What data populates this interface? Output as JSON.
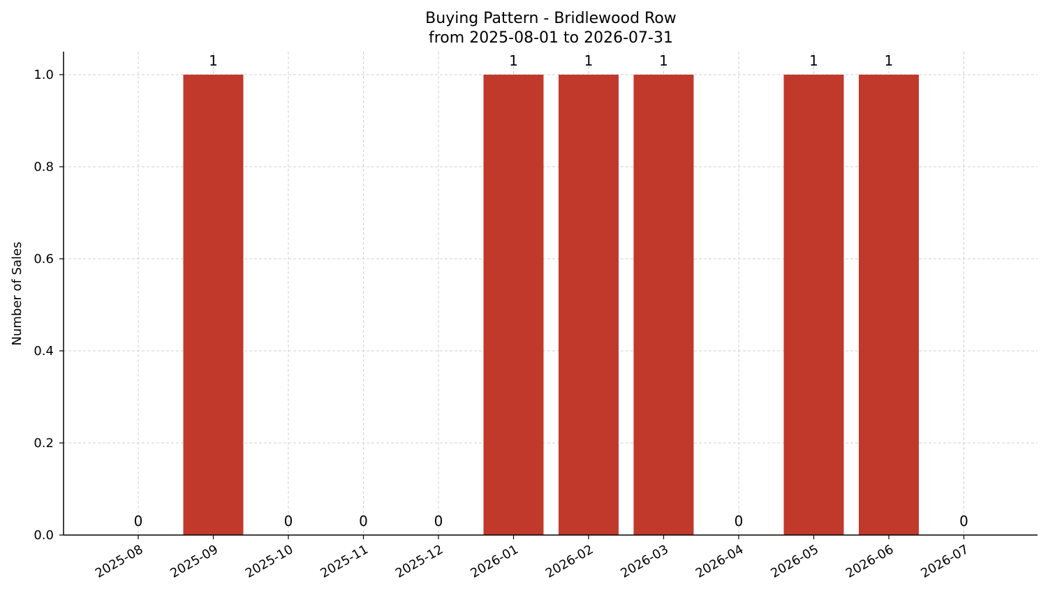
{
  "chart_data": {
    "type": "bar",
    "title": "Buying Pattern - Bridlewood Row",
    "subtitle": "from 2025-08-01 to 2026-07-31",
    "xlabel": "",
    "ylabel": "Number of Sales",
    "categories": [
      "2025-08",
      "2025-09",
      "2025-10",
      "2025-11",
      "2025-12",
      "2026-01",
      "2026-02",
      "2026-03",
      "2026-04",
      "2026-05",
      "2026-06",
      "2026-07"
    ],
    "values": [
      0,
      1,
      0,
      0,
      0,
      1,
      1,
      1,
      0,
      1,
      1,
      0
    ],
    "data_labels": [
      "0",
      "1",
      "0",
      "0",
      "0",
      "1",
      "1",
      "1",
      "0",
      "1",
      "1",
      "0"
    ],
    "ylim": [
      0,
      1.05
    ],
    "yticks": [
      0.0,
      0.2,
      0.4,
      0.6,
      0.8,
      1.0
    ],
    "ytick_labels": [
      "0.0",
      "0.2",
      "0.4",
      "0.6",
      "0.8",
      "1.0"
    ],
    "bar_color": "#c0392b",
    "grid": true,
    "legend": "none"
  }
}
